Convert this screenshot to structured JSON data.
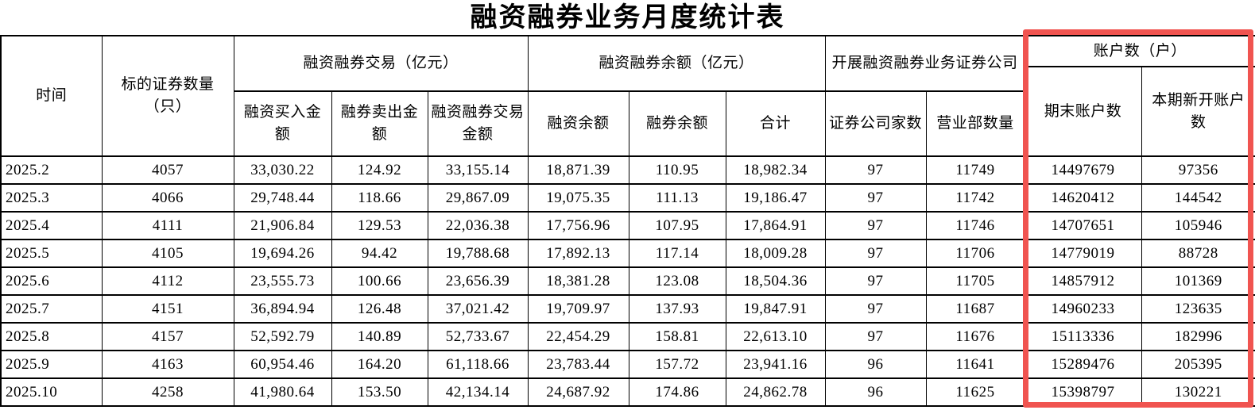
{
  "title": "融资融券业务月度统计表",
  "colors": {
    "highlight_border": "#f05450",
    "table_border": "#000000",
    "text": "#000000",
    "background": "#ffffff"
  },
  "table": {
    "header": {
      "time": "时间",
      "underlying_count": "标的证券数量（只）",
      "groups": [
        {
          "label": "融资融券交易（亿元）",
          "children": [
            "融资买入金额",
            "融券卖出金额",
            "融资融券交易金额"
          ]
        },
        {
          "label": "融资融券余额（亿元）",
          "children": [
            "融资余额",
            "融券余额",
            "合计"
          ]
        },
        {
          "label": "开展融资融券业务证券公司",
          "children": [
            "证券公司家数",
            "营业部数量"
          ]
        },
        {
          "label": "账户数（户）",
          "children": [
            "期末账户数",
            "本期新开账户数"
          ],
          "highlighted": true
        }
      ]
    },
    "rows": [
      {
        "cells": [
          "2025.2",
          "4057",
          "33,030.22",
          "124.92",
          "33,155.14",
          "18,871.39",
          "110.95",
          "18,982.34",
          "97",
          "11749",
          "14497679",
          "97356"
        ]
      },
      {
        "cells": [
          "2025.3",
          "4066",
          "29,748.44",
          "118.66",
          "29,867.09",
          "19,075.35",
          "111.13",
          "19,186.47",
          "97",
          "11742",
          "14620412",
          "144542"
        ]
      },
      {
        "cells": [
          "2025.4",
          "4111",
          "21,906.84",
          "129.53",
          "22,036.38",
          "17,756.96",
          "107.95",
          "17,864.91",
          "97",
          "11746",
          "14707651",
          "105946"
        ]
      },
      {
        "cells": [
          "2025.5",
          "4105",
          "19,694.26",
          "94.42",
          "19,788.68",
          "17,892.13",
          "117.14",
          "18,009.28",
          "97",
          "11706",
          "14779019",
          "88728"
        ]
      },
      {
        "cells": [
          "2025.6",
          "4112",
          "23,555.73",
          "100.66",
          "23,656.39",
          "18,381.28",
          "123.08",
          "18,504.36",
          "97",
          "11705",
          "14857912",
          "101369"
        ]
      },
      {
        "cells": [
          "2025.7",
          "4151",
          "36,894.94",
          "126.48",
          "37,021.42",
          "19,709.97",
          "137.93",
          "19,847.91",
          "97",
          "11687",
          "14960233",
          "123635"
        ]
      },
      {
        "cells": [
          "2025.8",
          "4157",
          "52,592.79",
          "140.89",
          "52,733.67",
          "22,454.29",
          "158.81",
          "22,613.10",
          "97",
          "11676",
          "15113336",
          "182996"
        ]
      },
      {
        "cells": [
          "2025.9",
          "4163",
          "60,954.46",
          "164.20",
          "61,118.66",
          "23,783.44",
          "157.72",
          "23,941.16",
          "96",
          "11641",
          "15289476",
          "205395"
        ]
      },
      {
        "cells": [
          "2025.10",
          "4258",
          "41,980.64",
          "153.50",
          "42,134.14",
          "24,687.92",
          "174.86",
          "24,862.78",
          "96",
          "11625",
          "15398797",
          "130221"
        ]
      }
    ]
  }
}
